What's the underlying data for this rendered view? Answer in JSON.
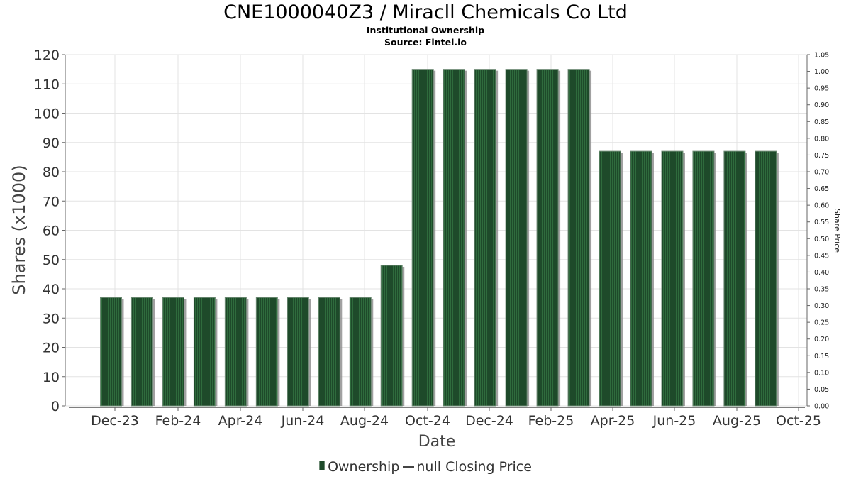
{
  "chart_data": {
    "type": "bar",
    "title": "CNE1000040Z3 / Miracll Chemicals Co Ltd",
    "subtitle": "Institutional Ownership",
    "source": "Source: Fintel.io",
    "xlabel": "Date",
    "ylabel": "Shares (x1000)",
    "y2label": "Share Price",
    "ylim": [
      0,
      120
    ],
    "y2lim": [
      0,
      1.05
    ],
    "yticks": [
      "0",
      "10",
      "20",
      "30",
      "40",
      "50",
      "60",
      "70",
      "80",
      "90",
      "100",
      "110",
      "120"
    ],
    "y2ticks": [
      "0.00",
      "0.05",
      "0.10",
      "0.15",
      "0.20",
      "0.25",
      "0.30",
      "0.35",
      "0.40",
      "0.45",
      "0.50",
      "0.55",
      "0.60",
      "0.65",
      "0.70",
      "0.75",
      "0.80",
      "0.85",
      "0.90",
      "0.95",
      "1.00",
      "1.05"
    ],
    "xticks": [
      "Dec-23",
      "Feb-24",
      "Apr-24",
      "Jun-24",
      "Aug-24",
      "Oct-24",
      "Dec-24",
      "Feb-25",
      "Apr-25",
      "Jun-25",
      "Aug-25",
      "Oct-25"
    ],
    "grid": true,
    "legend_position": "bottom",
    "bar_color": "#1e4a2a",
    "series": [
      {
        "name": "Ownership",
        "values": [
          37,
          37,
          37,
          37,
          37,
          37,
          37,
          37,
          37,
          48,
          115,
          115,
          115,
          115,
          115,
          115,
          87,
          87,
          87,
          87,
          87,
          87
        ]
      },
      {
        "name": "null Closing Price",
        "values": []
      }
    ]
  }
}
